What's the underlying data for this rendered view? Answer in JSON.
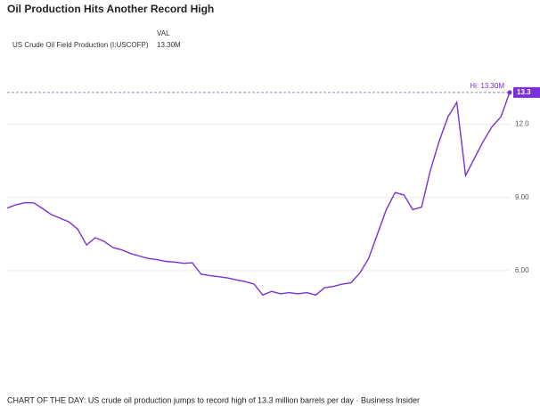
{
  "chart_data": {
    "type": "line",
    "title": "Oil Production Hits Another Record High",
    "legend_header": "VAL",
    "legend_value": "13.30M",
    "series": [
      {
        "name": "US Crude Oil Field Production (I:USCOFP)",
        "color": "#7b2fd6",
        "values": [
          8.56,
          8.7,
          8.78,
          8.78,
          8.55,
          8.3,
          8.15,
          8.0,
          7.7,
          7.05,
          7.35,
          7.2,
          6.95,
          6.85,
          6.7,
          6.6,
          6.5,
          6.45,
          6.38,
          6.35,
          6.3,
          6.32,
          5.85,
          5.8,
          5.75,
          5.7,
          5.62,
          5.55,
          5.45,
          5.0,
          5.15,
          5.05,
          5.1,
          5.05,
          5.1,
          5.0,
          5.3,
          5.35,
          5.45,
          5.5,
          5.9,
          6.5,
          7.5,
          8.5,
          9.2,
          9.1,
          8.5,
          8.6,
          10.1,
          11.3,
          12.3,
          12.9,
          9.9,
          10.6,
          11.3,
          11.9,
          12.3,
          13.3
        ]
      }
    ],
    "high": {
      "value": 13.3,
      "label": "Hi: 13.30M"
    },
    "ylim": [
      4.5,
      14.9
    ],
    "yticks": [
      {
        "value": 6,
        "label": "6.00"
      },
      {
        "value": 9,
        "label": "9.00"
      },
      {
        "value": 12,
        "label": "12.0"
      }
    ],
    "grid": true,
    "caption": "CHART OF THE DAY: US crude oil production jumps to record high of 13.3 million barrels per day  ·  Business Insider"
  }
}
